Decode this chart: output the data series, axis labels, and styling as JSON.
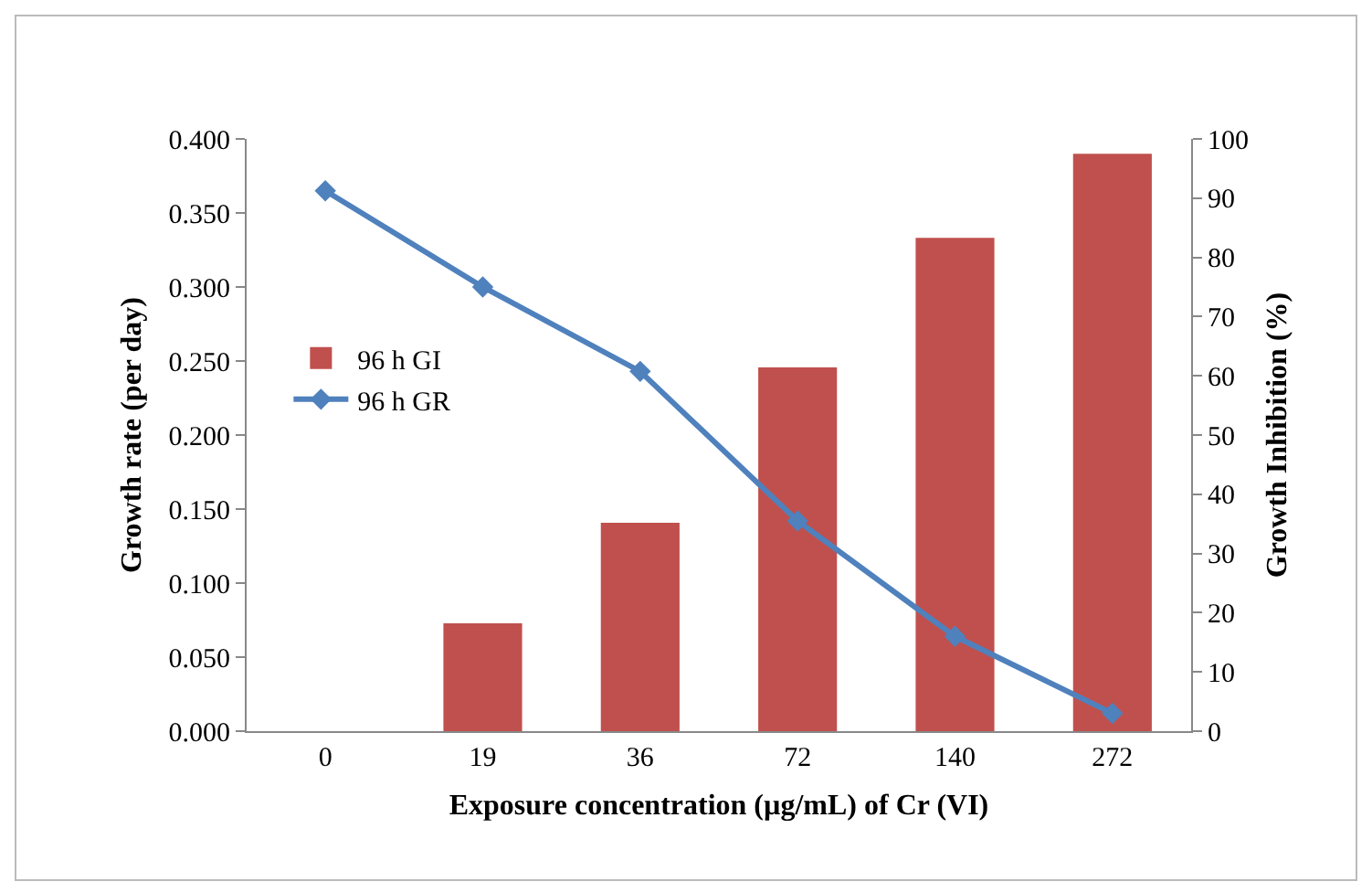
{
  "chart_data": {
    "type": "bar",
    "xlabel": "Exposure concentration (µg/mL) of Cr (VI)",
    "ylabel": "Growth rate (per day)",
    "y2label": "Growth Inhibition (%)",
    "categories": [
      "0",
      "19",
      "36",
      "72",
      "140",
      "272"
    ],
    "series": [
      {
        "name": "96 h GI",
        "axis": "y2",
        "color": "#c0504d",
        "values": [
          0,
          18.2,
          35.2,
          61.4,
          83.3,
          97.5
        ]
      },
      {
        "name": "96 h GR",
        "type": "line",
        "color": "#4f81bd",
        "marker": "diamond",
        "values": [
          0.365,
          0.3,
          0.243,
          0.142,
          0.064,
          0.012
        ]
      }
    ],
    "ylim": [
      0,
      0.4
    ],
    "yticks": [
      {
        "value": 0,
        "label": "0.000"
      },
      {
        "value": 0.05,
        "label": "0.050"
      },
      {
        "value": 0.1,
        "label": "0.100"
      },
      {
        "value": 0.15,
        "label": "0.150"
      },
      {
        "value": 0.2,
        "label": "0.200"
      },
      {
        "value": 0.25,
        "label": "0.250"
      },
      {
        "value": 0.3,
        "label": "0.300"
      },
      {
        "value": 0.35,
        "label": "0.350"
      },
      {
        "value": 0.4,
        "label": "0.400"
      }
    ],
    "y2lim": [
      0,
      100
    ],
    "y2ticks": [
      0,
      10,
      20,
      30,
      40,
      50,
      60,
      70,
      80,
      90,
      100
    ],
    "grid": false,
    "legend": "left"
  }
}
